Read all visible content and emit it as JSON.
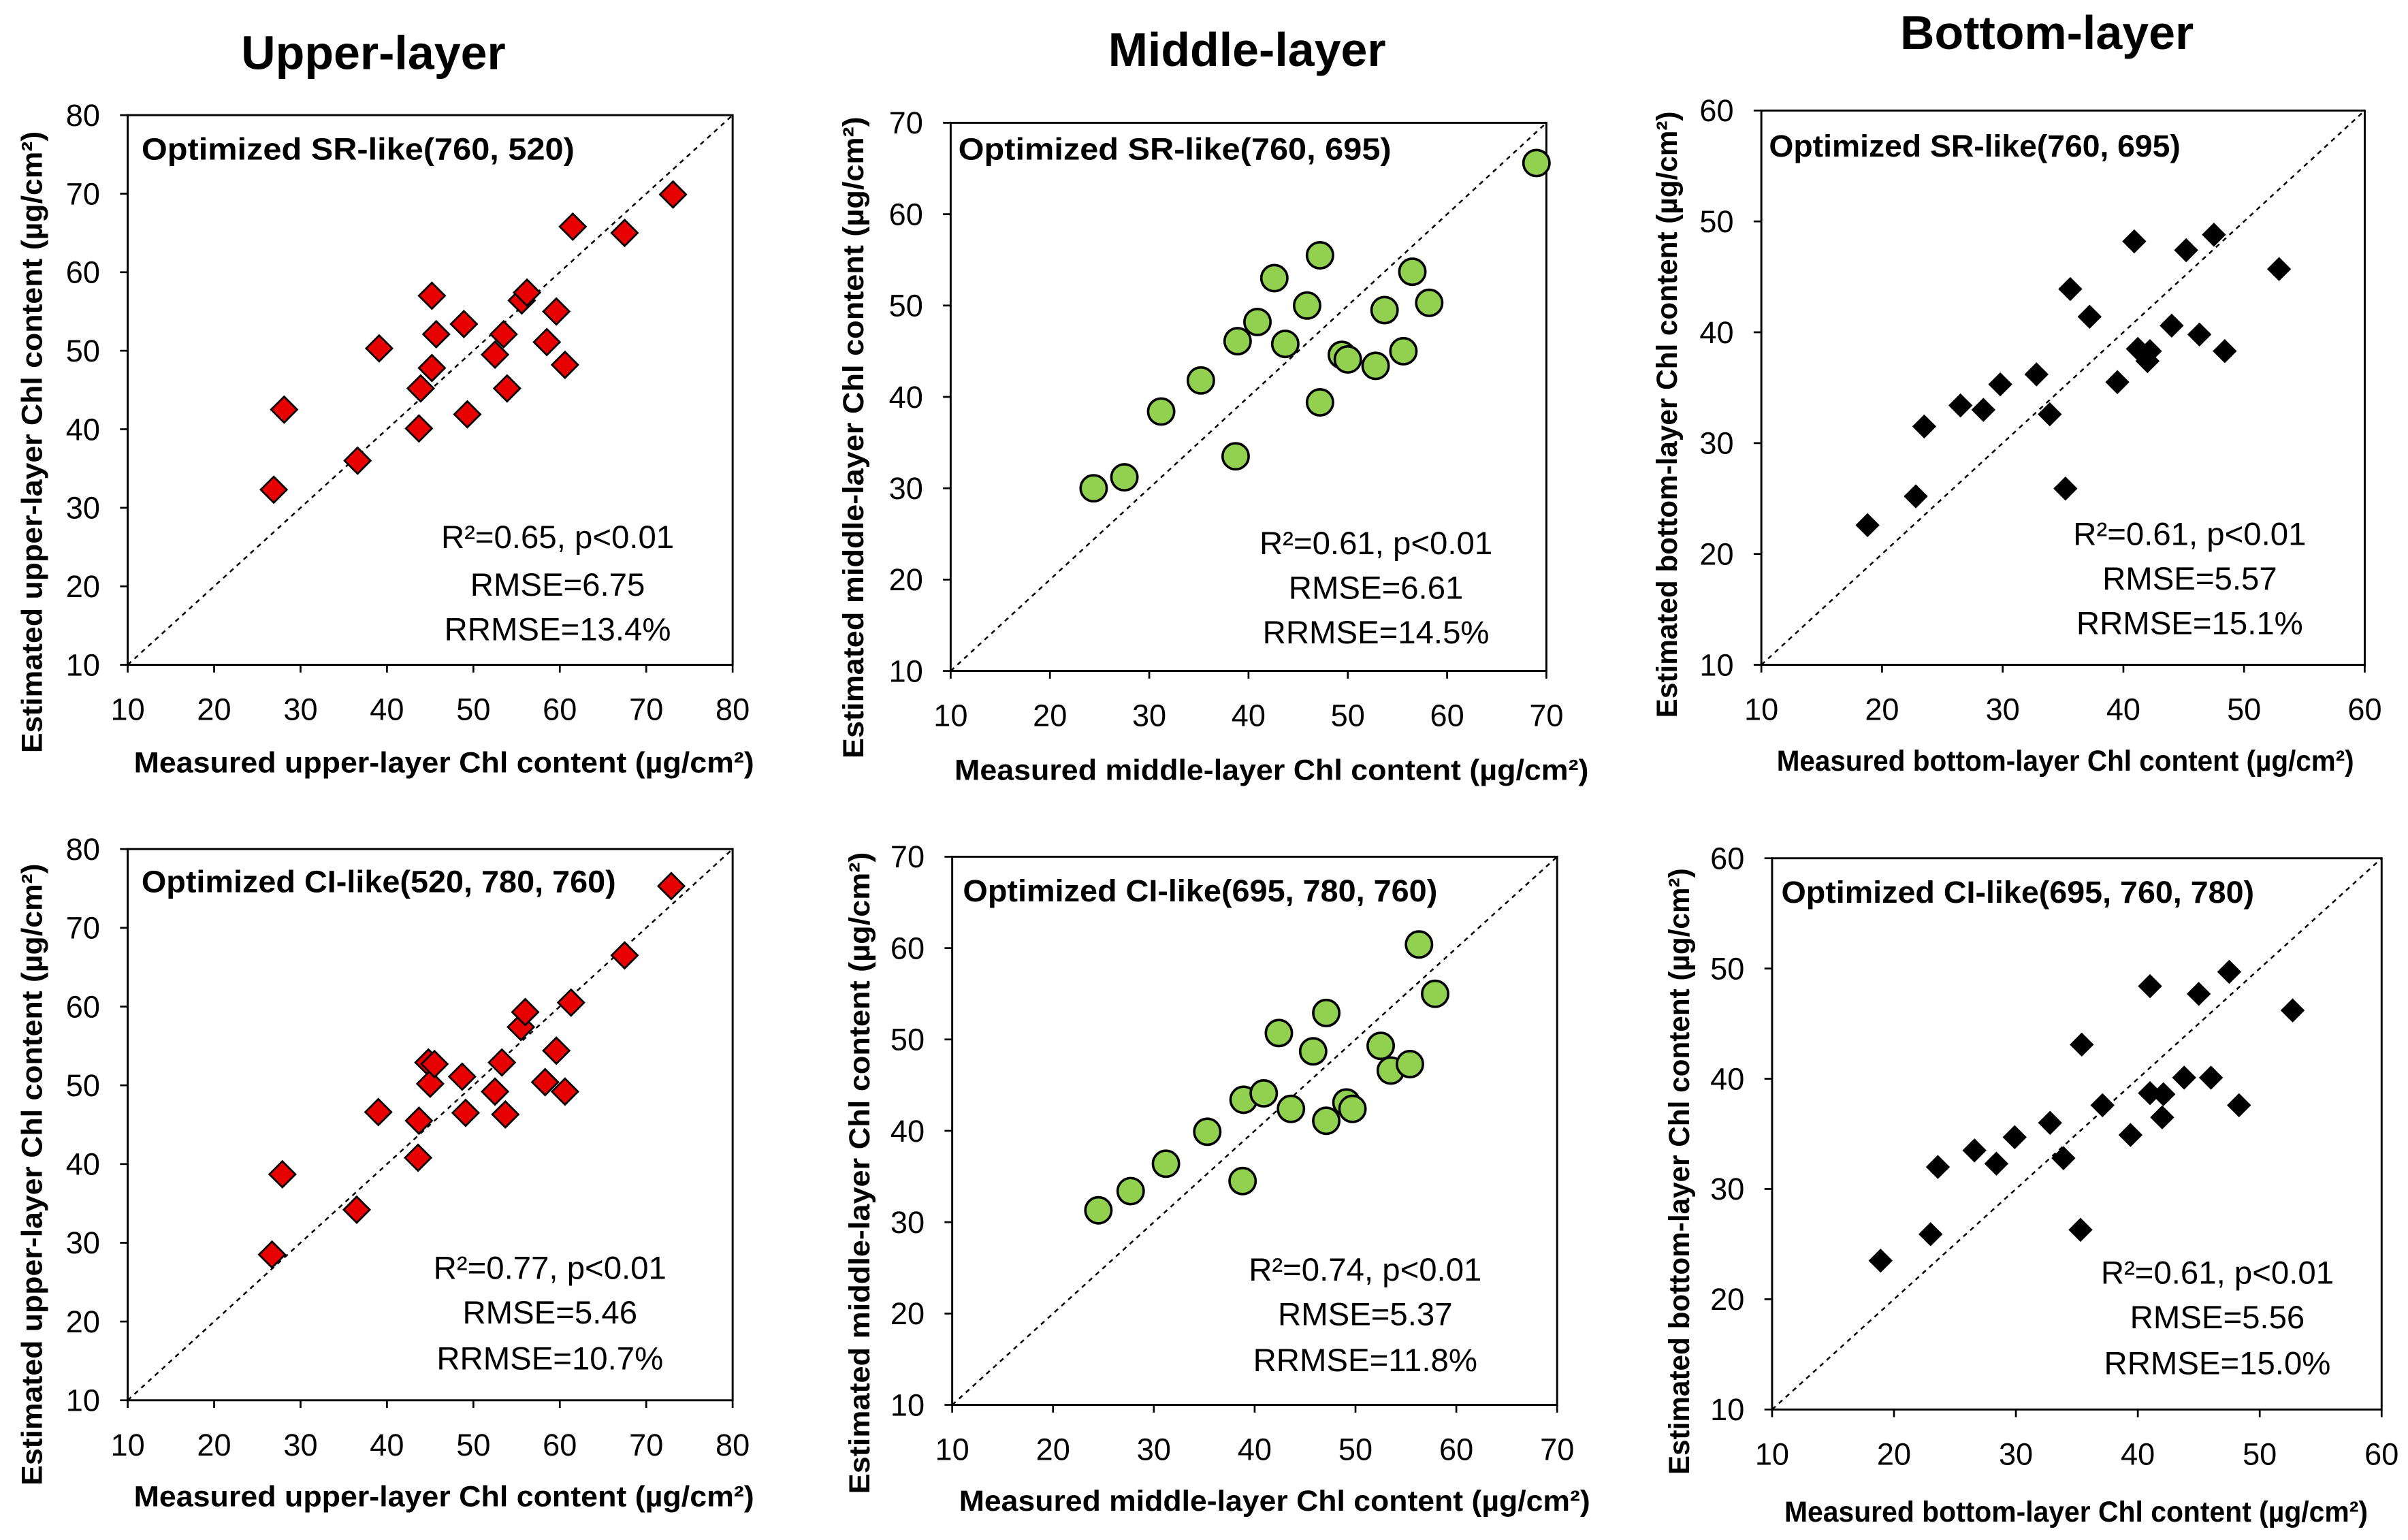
{
  "column_titles": {
    "upper": "Upper-layer",
    "middle": "Middle-layer",
    "bottom": "Bottom-layer"
  },
  "chart_data": [
    {
      "type": "scatter",
      "title": "Optimized SR-like(760, 520)",
      "xlabel": "Measured upper-layer Chl content (µg/cm²)",
      "ylabel": "Estimated upper-layer Chl content (µg/cm²)",
      "xlim": [
        10,
        80
      ],
      "ylim": [
        10,
        80
      ],
      "xticks": [
        10,
        20,
        30,
        40,
        50,
        60,
        70,
        80
      ],
      "yticks": [
        10,
        20,
        30,
        40,
        50,
        60,
        70,
        80
      ],
      "grid": false,
      "identity_line": true,
      "annotations": [
        "R²=0.65, p<0.01",
        "RMSE=6.75",
        "RRMSE=13.4%"
      ],
      "marker": "diamond",
      "marker_color": "#E60000",
      "marker_edge_color": "#000000",
      "x": [
        26.9,
        28.1,
        36.6,
        39.1,
        43.7,
        43.9,
        45.2,
        45.2,
        45.7,
        48.9,
        49.3,
        52.5,
        53.5,
        53.9,
        55.6,
        56.2,
        58.5,
        59.6,
        60.6,
        61.5,
        67.5,
        73.1
      ],
      "y": [
        32.3,
        42.5,
        36.0,
        50.3,
        40.1,
        45.2,
        57.0,
        47.8,
        52.1,
        53.4,
        41.9,
        49.5,
        52.1,
        45.2,
        56.4,
        57.4,
        51.1,
        55.0,
        48.2,
        65.8,
        65.0,
        69.9
      ]
    },
    {
      "type": "scatter",
      "title": "Optimized SR-like(760, 695)",
      "xlabel": "Measured middle-layer Chl content (µg/cm²)",
      "ylabel": "Estimated middle-layer Chl content (µg/cm²)",
      "xlim": [
        10,
        70
      ],
      "ylim": [
        10,
        70
      ],
      "xticks": [
        10,
        20,
        30,
        40,
        50,
        60,
        70
      ],
      "yticks": [
        10,
        20,
        30,
        40,
        50,
        60,
        70
      ],
      "grid": false,
      "identity_line": true,
      "annotations": [
        "R²=0.61, p<0.01",
        "RMSE=6.61",
        "RRMSE=14.5%"
      ],
      "marker": "circle",
      "marker_color": "#92D050",
      "marker_edge_color": "#000000",
      "x": [
        24.4,
        27.5,
        31.2,
        35.2,
        38.7,
        38.9,
        40.9,
        42.6,
        43.7,
        45.9,
        47.2,
        47.2,
        49.4,
        50.0,
        52.8,
        53.7,
        55.6,
        56.5,
        58.2,
        69.0
      ],
      "y": [
        30.0,
        31.2,
        38.4,
        41.8,
        33.5,
        46.1,
        48.2,
        53.0,
        45.8,
        50.0,
        39.4,
        55.5,
        44.6,
        44.1,
        43.4,
        49.5,
        45.0,
        53.7,
        50.3,
        65.6
      ]
    },
    {
      "type": "scatter",
      "title": "Optimized SR-like(760, 695)",
      "xlabel": "Measured bottom-layer Chl content (µg/cm²)",
      "ylabel": "Estimated bottom-layer Chl content (µg/cm²)",
      "xlim": [
        10,
        60
      ],
      "ylim": [
        10,
        60
      ],
      "xticks": [
        10,
        20,
        30,
        40,
        50,
        60
      ],
      "yticks": [
        10,
        20,
        30,
        40,
        50,
        60
      ],
      "grid": false,
      "identity_line": true,
      "annotations": [
        "R²=0.61, p<0.01",
        "RMSE=5.57",
        "RRMSE=15.1%"
      ],
      "marker": "diamond",
      "marker_color": "#000000",
      "marker_edge_color": "#000000",
      "x": [
        18.8,
        22.8,
        23.5,
        26.5,
        28.4,
        29.8,
        32.8,
        33.9,
        35.2,
        35.6,
        37.2,
        39.5,
        40.9,
        41.2,
        42.0,
        42.2,
        44.0,
        45.2,
        46.3,
        47.5,
        48.4,
        52.9
      ],
      "y": [
        22.6,
        25.2,
        31.5,
        33.4,
        33.0,
        35.3,
        36.2,
        32.6,
        25.9,
        43.9,
        41.4,
        35.5,
        48.2,
        38.5,
        37.4,
        38.3,
        40.6,
        47.4,
        39.8,
        48.8,
        38.3,
        45.7
      ]
    },
    {
      "type": "scatter",
      "title": "Optimized CI-like(520, 780, 760)",
      "xlabel": "Measured upper-layer Chl content (µg/cm²)",
      "ylabel": "Estimated upper-layer Chl content (µg/cm²)",
      "xlim": [
        10,
        80
      ],
      "ylim": [
        10,
        80
      ],
      "xticks": [
        10,
        20,
        30,
        40,
        50,
        60,
        70,
        80
      ],
      "yticks": [
        10,
        20,
        30,
        40,
        50,
        60,
        70,
        80
      ],
      "grid": false,
      "identity_line": true,
      "annotations": [
        "R²=0.77, p<0.01",
        "RMSE=5.46",
        "RRMSE=10.7%"
      ],
      "marker": "diamond",
      "marker_color": "#E60000",
      "marker_edge_color": "#000000",
      "x": [
        26.7,
        27.9,
        36.5,
        39.0,
        43.6,
        43.7,
        44.8,
        45.0,
        45.5,
        48.7,
        49.1,
        52.5,
        53.3,
        53.7,
        55.5,
        56.0,
        58.3,
        59.6,
        60.6,
        61.3,
        67.5,
        72.9
      ],
      "y": [
        28.5,
        38.7,
        34.2,
        46.6,
        40.8,
        45.5,
        52.9,
        50.2,
        52.7,
        51.1,
        46.5,
        49.2,
        52.9,
        46.3,
        57.4,
        59.3,
        50.4,
        54.4,
        49.2,
        60.5,
        66.5,
        75.3
      ]
    },
    {
      "type": "scatter",
      "title": "Optimized CI-like(695, 780, 760)",
      "xlabel": "Measured middle-layer Chl content (µg/cm²)",
      "ylabel": "Estimated middle-layer Chl content (µg/cm²)",
      "xlim": [
        10,
        70
      ],
      "ylim": [
        10,
        70
      ],
      "xticks": [
        10,
        20,
        30,
        40,
        50,
        60,
        70
      ],
      "yticks": [
        10,
        20,
        30,
        40,
        50,
        60,
        70
      ],
      "grid": false,
      "identity_line": true,
      "annotations": [
        "R²=0.74, p<0.01",
        "RMSE=5.37",
        "RRMSE=11.8%"
      ],
      "marker": "circle",
      "marker_color": "#92D050",
      "marker_edge_color": "#000000",
      "x": [
        24.5,
        27.7,
        31.2,
        35.3,
        38.8,
        38.9,
        40.9,
        42.4,
        43.6,
        45.8,
        47.1,
        47.1,
        49.1,
        49.7,
        52.5,
        53.5,
        55.4,
        56.3,
        57.9
      ],
      "y": [
        31.3,
        33.4,
        36.4,
        39.9,
        34.5,
        43.4,
        44.1,
        50.7,
        42.4,
        48.7,
        41.1,
        52.9,
        43.1,
        42.4,
        49.3,
        46.6,
        47.3,
        60.4,
        55.0
      ]
    },
    {
      "type": "scatter",
      "title": "Optimized CI-like(695, 760, 780)",
      "xlabel": "Measured bottom-layer Chl content (µg/cm²)",
      "ylabel": "Estimated bottom-layer Chl content (µg/cm²)",
      "xlim": [
        10,
        60
      ],
      "ylim": [
        10,
        60
      ],
      "xticks": [
        10,
        20,
        30,
        40,
        50,
        60
      ],
      "yticks": [
        10,
        20,
        30,
        40,
        50,
        60
      ],
      "grid": false,
      "identity_line": true,
      "annotations": [
        "R²=0.61, p<0.01",
        "RMSE=5.56",
        "RRMSE=15.0%"
      ],
      "marker": "diamond",
      "marker_color": "#000000",
      "marker_edge_color": "#000000",
      "x": [
        18.9,
        23.0,
        23.6,
        26.6,
        28.4,
        29.9,
        32.8,
        33.9,
        35.3,
        35.4,
        37.1,
        39.4,
        41.0,
        41.0,
        42.0,
        42.1,
        43.8,
        45.0,
        46.0,
        47.5,
        48.3,
        52.7
      ],
      "y": [
        23.5,
        25.9,
        32.0,
        33.5,
        32.3,
        34.7,
        36.0,
        32.8,
        26.3,
        43.1,
        37.6,
        34.9,
        48.4,
        38.7,
        36.5,
        38.6,
        40.1,
        47.7,
        40.1,
        49.7,
        37.6,
        46.2
      ]
    }
  ]
}
